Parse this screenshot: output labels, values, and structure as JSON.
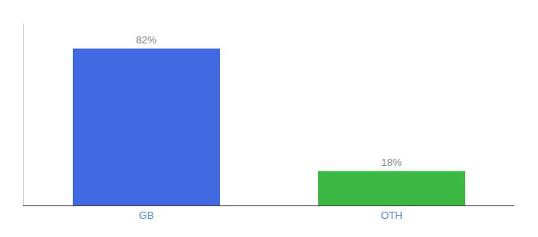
{
  "chart_data": {
    "type": "bar",
    "categories": [
      "GB",
      "OTH"
    ],
    "values": [
      82,
      18
    ],
    "value_labels": [
      "82%",
      "18%"
    ],
    "colors": [
      "#4169e1",
      "#3cb943"
    ],
    "ylim": [
      0,
      95
    ],
    "data_labels": true,
    "tick_labels": "x",
    "grid": false
  }
}
